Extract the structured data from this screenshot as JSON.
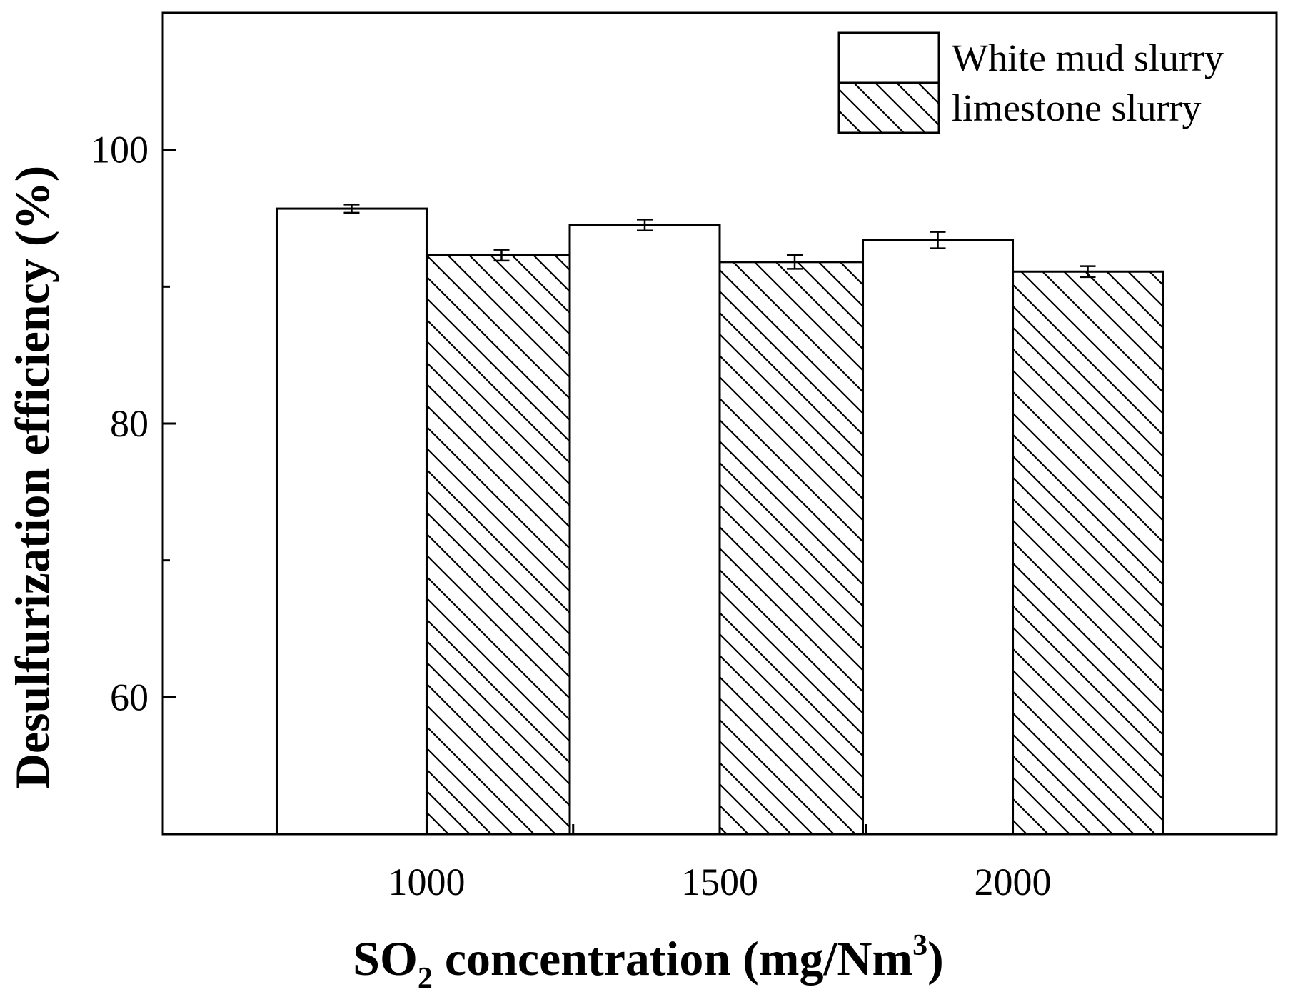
{
  "chart_data": {
    "type": "bar",
    "title": "",
    "xlabel": "SO2 concentration (mg/Nm3)",
    "xlabel_parts": {
      "main": "SO",
      "sub": "2",
      "mid": " concentration (mg/Nm",
      "sup": "3",
      "end": ")"
    },
    "ylabel": "Desulfurization efficiency (%)",
    "categories": [
      "1000",
      "1500",
      "2000"
    ],
    "ylim": [
      50,
      110
    ],
    "yticks": [
      60,
      80,
      100
    ],
    "ytick_labels": [
      "60",
      "80",
      "100"
    ],
    "legend_position": "top-right",
    "series": [
      {
        "name": "White mud slurry",
        "fill": "white",
        "values": [
          95.7,
          94.5,
          93.4
        ],
        "errors": [
          0.3,
          0.4,
          0.6
        ]
      },
      {
        "name": "limestone slurry",
        "fill": "hatch",
        "values": [
          92.3,
          91.8,
          91.1
        ],
        "errors": [
          0.4,
          0.5,
          0.4
        ]
      }
    ]
  },
  "colors": {
    "axis": "#000000",
    "bar_fill": "#ffffff",
    "hatch": "#000000"
  }
}
